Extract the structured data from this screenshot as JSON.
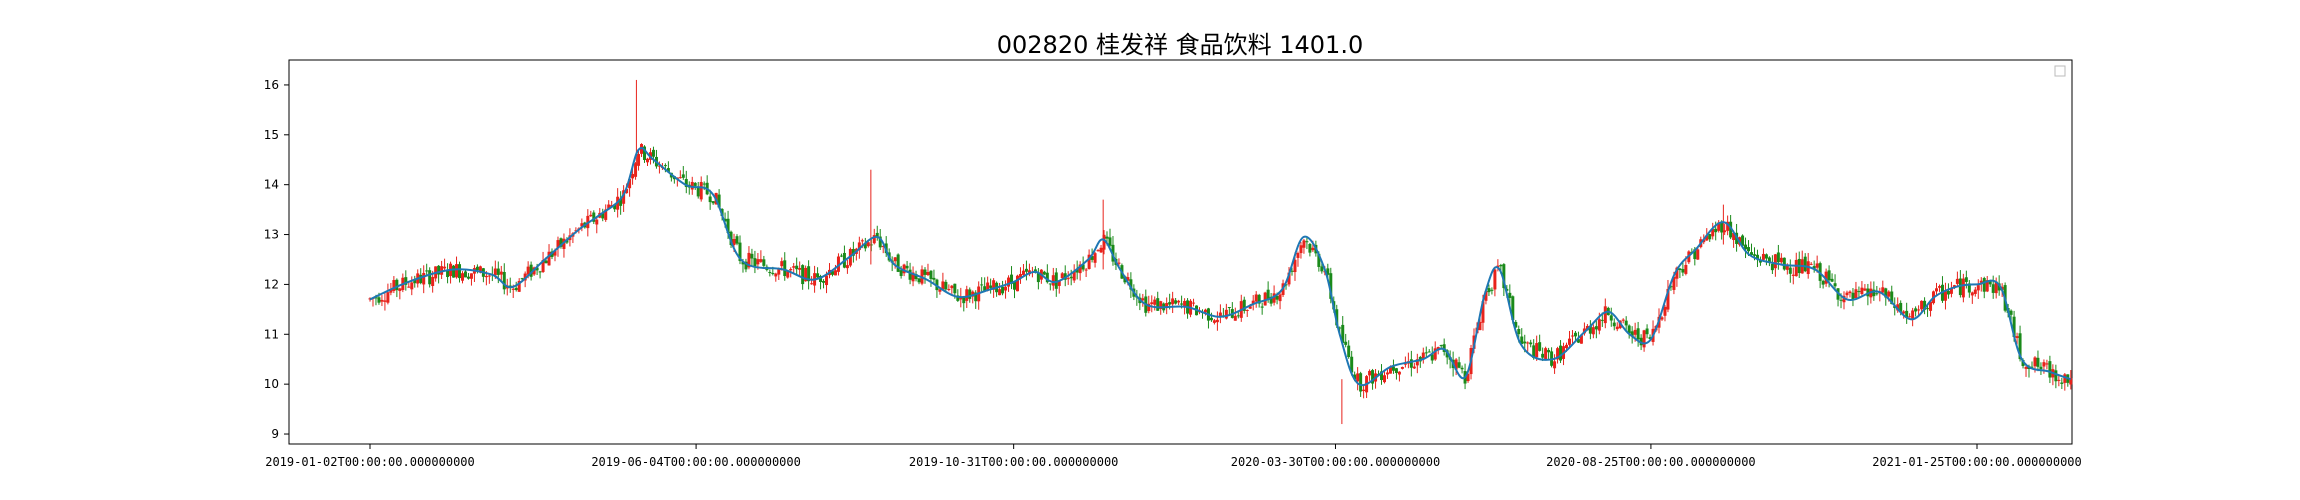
{
  "chart_data": {
    "type": "candlestick",
    "title": "002820 桂发祥 食品饮料 1401.0",
    "xlabel": "",
    "ylabel": "",
    "ylim": [
      8.8,
      16.5
    ],
    "yticks": [
      9,
      10,
      11,
      12,
      13,
      14,
      15,
      16
    ],
    "xticks": [
      "2019-01-02T00:00:00.000000000",
      "2019-06-04T00:00:00.000000000",
      "2019-10-31T00:00:00.000000000",
      "2020-03-30T00:00:00.000000000",
      "2020-08-25T00:00:00.000000000",
      "2021-01-25T00:00:00.000000000"
    ],
    "legend": {
      "placement": "top-right",
      "entries": []
    },
    "grid": false,
    "colors": {
      "up": "#e8221b",
      "down": "#1a8a1a",
      "ma_line": "#1f77b4"
    },
    "series": [
      {
        "name": "moving-average",
        "points": [
          [
            "2019-01-02",
            11.7
          ],
          [
            "2019-01-20",
            12.05
          ],
          [
            "2019-02-10",
            12.3
          ],
          [
            "2019-02-28",
            12.2
          ],
          [
            "2019-03-10",
            11.95
          ],
          [
            "2019-03-25",
            12.5
          ],
          [
            "2019-04-10",
            13.1
          ],
          [
            "2019-04-20",
            13.4
          ],
          [
            "2019-05-01",
            13.8
          ],
          [
            "2019-05-08",
            14.7
          ],
          [
            "2019-05-15",
            14.5
          ],
          [
            "2019-05-30",
            14.0
          ],
          [
            "2019-06-12",
            13.8
          ],
          [
            "2019-06-25",
            12.5
          ],
          [
            "2019-07-15",
            12.3
          ],
          [
            "2019-07-30",
            12.1
          ],
          [
            "2019-08-15",
            12.55
          ],
          [
            "2019-08-28",
            12.95
          ],
          [
            "2019-09-05",
            12.4
          ],
          [
            "2019-09-20",
            12.1
          ],
          [
            "2019-10-05",
            11.75
          ],
          [
            "2019-10-20",
            11.9
          ],
          [
            "2019-10-31",
            12.05
          ],
          [
            "2019-11-10",
            12.25
          ],
          [
            "2019-11-20",
            12.05
          ],
          [
            "2019-12-05",
            12.5
          ],
          [
            "2019-12-12",
            12.9
          ],
          [
            "2019-12-20",
            12.3
          ],
          [
            "2020-01-01",
            11.6
          ],
          [
            "2020-01-20",
            11.55
          ],
          [
            "2020-02-05",
            11.35
          ],
          [
            "2020-02-20",
            11.6
          ],
          [
            "2020-03-05",
            11.9
          ],
          [
            "2020-03-15",
            12.95
          ],
          [
            "2020-03-25",
            12.3
          ],
          [
            "2020-04-01",
            11.0
          ],
          [
            "2020-04-10",
            10.0
          ],
          [
            "2020-04-25",
            10.35
          ],
          [
            "2020-05-10",
            10.5
          ],
          [
            "2020-05-20",
            10.7
          ],
          [
            "2020-05-30",
            10.15
          ],
          [
            "2020-06-08",
            11.8
          ],
          [
            "2020-06-15",
            12.3
          ],
          [
            "2020-06-25",
            10.8
          ],
          [
            "2020-07-10",
            10.5
          ],
          [
            "2020-07-25",
            11.05
          ],
          [
            "2020-08-05",
            11.45
          ],
          [
            "2020-08-15",
            11.0
          ],
          [
            "2020-08-25",
            10.9
          ],
          [
            "2020-09-05",
            12.2
          ],
          [
            "2020-09-15",
            12.7
          ],
          [
            "2020-09-28",
            13.25
          ],
          [
            "2020-10-10",
            12.6
          ],
          [
            "2020-10-25",
            12.4
          ],
          [
            "2020-11-10",
            12.3
          ],
          [
            "2020-11-25",
            11.7
          ],
          [
            "2020-12-10",
            11.85
          ],
          [
            "2020-12-25",
            11.3
          ],
          [
            "2021-01-05",
            11.75
          ],
          [
            "2021-01-15",
            11.95
          ],
          [
            "2021-01-25",
            12.0
          ],
          [
            "2021-02-05",
            11.95
          ],
          [
            "2021-02-15",
            10.5
          ],
          [
            "2021-02-28",
            10.25
          ],
          [
            "2021-03-10",
            10.1
          ]
        ]
      }
    ],
    "candles_note_spikes": [
      {
        "date": "2019-05-07",
        "high": 16.1,
        "low": 14.2
      },
      {
        "date": "2019-08-25",
        "high": 14.3,
        "low": 12.4
      },
      {
        "date": "2019-12-12",
        "high": 13.7,
        "low": 12.3
      },
      {
        "date": "2020-04-02",
        "high": 10.1,
        "low": 9.2
      },
      {
        "date": "2020-09-28",
        "high": 13.6,
        "low": 12.8
      }
    ]
  }
}
